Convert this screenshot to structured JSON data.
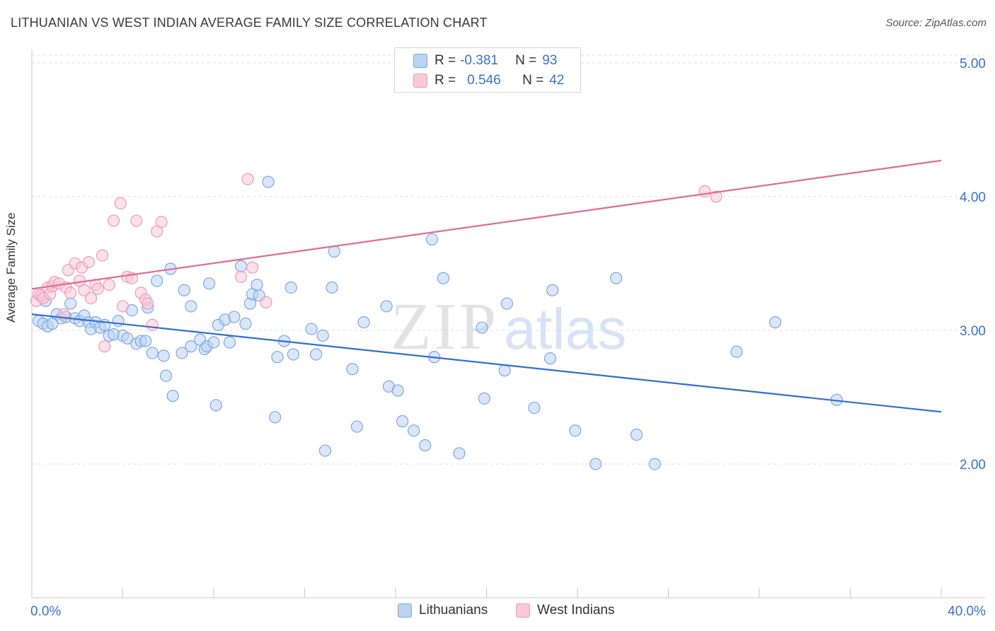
{
  "title": "LITHUANIAN VS WEST INDIAN AVERAGE FAMILY SIZE CORRELATION CHART",
  "source": "Source: ZipAtlas.com",
  "watermark": {
    "zip": "ZIP",
    "atlas": "atlas"
  },
  "legend": {
    "rows": [
      {
        "r_label": "R =",
        "r_value": "-0.381",
        "n_label": "N =",
        "n_value": "93"
      },
      {
        "r_label": "R =",
        "r_value": "0.546",
        "n_label": "N =",
        "n_value": "42"
      }
    ]
  },
  "bottom_legend": {
    "series1": "Lithuanians",
    "series2": "West Indians"
  },
  "colors": {
    "blue_fill": "#bcd3f4",
    "blue_stroke": "#7fa6e0",
    "blue_line": "#2f6fce",
    "pink_fill": "#f8c9d8",
    "pink_stroke": "#ee9ab6",
    "pink_line": "#e06c95",
    "axis_text": "#3a72c8",
    "grid": "#dcdcdc"
  },
  "chart_data": {
    "type": "scatter",
    "title": "LITHUANIAN VS WEST INDIAN AVERAGE FAMILY SIZE CORRELATION CHART",
    "xlabel": "",
    "ylabel": "Average Family Size",
    "xlim": [
      0,
      40
    ],
    "ylim": [
      1.0,
      5.1
    ],
    "x_tick_labels": [
      "0.0%",
      "40.0%"
    ],
    "y_ticks": [
      2.0,
      3.0,
      4.0,
      5.0
    ],
    "y_tick_labels": [
      "2.00",
      "3.00",
      "4.00",
      "5.00"
    ],
    "series": [
      {
        "name": "Lithuanians",
        "r": -0.381,
        "n": 93,
        "trend": {
          "x": [
            0,
            40
          ],
          "y": [
            3.12,
            2.39
          ]
        },
        "points": [
          [
            0.3,
            3.07
          ],
          [
            0.5,
            3.05
          ],
          [
            0.7,
            3.03
          ],
          [
            0.9,
            3.05
          ],
          [
            1.1,
            3.12
          ],
          [
            1.3,
            3.09
          ],
          [
            1.5,
            3.1
          ],
          [
            1.7,
            3.2
          ],
          [
            1.9,
            3.09
          ],
          [
            2.1,
            3.07
          ],
          [
            2.3,
            3.11
          ],
          [
            2.5,
            3.06
          ],
          [
            2.6,
            3.01
          ],
          [
            2.8,
            3.06
          ],
          [
            3.0,
            3.02
          ],
          [
            3.2,
            3.04
          ],
          [
            3.4,
            2.96
          ],
          [
            3.6,
            2.97
          ],
          [
            3.8,
            3.07
          ],
          [
            4.0,
            2.96
          ],
          [
            4.2,
            2.94
          ],
          [
            4.4,
            3.15
          ],
          [
            4.6,
            2.9
          ],
          [
            4.8,
            2.92
          ],
          [
            5.0,
            2.92
          ],
          [
            5.1,
            3.17
          ],
          [
            5.3,
            2.83
          ],
          [
            5.5,
            3.37
          ],
          [
            5.8,
            2.81
          ],
          [
            5.9,
            2.66
          ],
          [
            6.1,
            3.46
          ],
          [
            6.2,
            2.51
          ],
          [
            6.6,
            2.83
          ],
          [
            6.7,
            3.3
          ],
          [
            7.0,
            2.88
          ],
          [
            7.0,
            3.18
          ],
          [
            7.4,
            2.93
          ],
          [
            7.6,
            2.86
          ],
          [
            7.7,
            2.88
          ],
          [
            7.8,
            3.35
          ],
          [
            8.0,
            2.91
          ],
          [
            8.1,
            2.44
          ],
          [
            8.2,
            3.04
          ],
          [
            8.5,
            3.08
          ],
          [
            8.7,
            2.91
          ],
          [
            8.9,
            3.1
          ],
          [
            9.2,
            3.48
          ],
          [
            9.4,
            3.05
          ],
          [
            9.6,
            3.2
          ],
          [
            9.7,
            3.27
          ],
          [
            9.9,
            3.34
          ],
          [
            10.0,
            3.26
          ],
          [
            10.4,
            4.11
          ],
          [
            10.7,
            2.35
          ],
          [
            10.8,
            2.8
          ],
          [
            11.1,
            2.92
          ],
          [
            11.4,
            3.32
          ],
          [
            11.5,
            2.82
          ],
          [
            12.3,
            3.01
          ],
          [
            12.5,
            2.82
          ],
          [
            12.8,
            2.96
          ],
          [
            12.9,
            2.1
          ],
          [
            13.2,
            3.32
          ],
          [
            13.3,
            3.59
          ],
          [
            14.1,
            2.71
          ],
          [
            14.3,
            2.28
          ],
          [
            14.6,
            3.06
          ],
          [
            15.6,
            3.18
          ],
          [
            15.7,
            2.58
          ],
          [
            16.1,
            2.55
          ],
          [
            16.3,
            2.32
          ],
          [
            16.8,
            2.25
          ],
          [
            17.3,
            2.14
          ],
          [
            17.6,
            3.68
          ],
          [
            17.7,
            2.8
          ],
          [
            18.1,
            3.39
          ],
          [
            18.8,
            2.08
          ],
          [
            19.8,
            3.02
          ],
          [
            19.9,
            2.49
          ],
          [
            20.8,
            2.7
          ],
          [
            20.9,
            3.2
          ],
          [
            22.1,
            2.42
          ],
          [
            22.8,
            2.79
          ],
          [
            22.9,
            3.3
          ],
          [
            23.9,
            2.25
          ],
          [
            24.8,
            2.0
          ],
          [
            25.7,
            3.39
          ],
          [
            26.6,
            2.22
          ],
          [
            27.4,
            2.0
          ],
          [
            31.0,
            2.84
          ],
          [
            32.7,
            3.06
          ],
          [
            35.4,
            2.48
          ],
          [
            0.6,
            3.22
          ]
        ]
      },
      {
        "name": "West Indians",
        "r": 0.546,
        "n": 42,
        "trend": {
          "x": [
            0,
            40
          ],
          "y": [
            3.31,
            4.27
          ]
        },
        "points": [
          [
            0.2,
            3.22
          ],
          [
            0.3,
            3.27
          ],
          [
            0.4,
            3.26
          ],
          [
            0.5,
            3.24
          ],
          [
            0.7,
            3.32
          ],
          [
            0.8,
            3.27
          ],
          [
            0.9,
            3.33
          ],
          [
            1.0,
            3.36
          ],
          [
            1.2,
            3.35
          ],
          [
            1.4,
            3.12
          ],
          [
            1.5,
            3.32
          ],
          [
            1.6,
            3.45
          ],
          [
            1.7,
            3.28
          ],
          [
            1.9,
            3.5
          ],
          [
            2.1,
            3.37
          ],
          [
            2.2,
            3.47
          ],
          [
            2.3,
            3.3
          ],
          [
            2.5,
            3.51
          ],
          [
            2.6,
            3.24
          ],
          [
            2.8,
            3.34
          ],
          [
            2.9,
            3.31
          ],
          [
            3.1,
            3.56
          ],
          [
            3.2,
            2.88
          ],
          [
            3.4,
            3.34
          ],
          [
            3.6,
            3.82
          ],
          [
            3.9,
            3.95
          ],
          [
            4.0,
            3.18
          ],
          [
            4.2,
            3.4
          ],
          [
            4.4,
            3.39
          ],
          [
            4.6,
            3.82
          ],
          [
            4.8,
            3.28
          ],
          [
            5.0,
            3.23
          ],
          [
            5.1,
            3.2
          ],
          [
            5.3,
            3.04
          ],
          [
            5.5,
            3.74
          ],
          [
            5.7,
            3.81
          ],
          [
            9.2,
            3.4
          ],
          [
            9.7,
            3.47
          ],
          [
            9.5,
            4.13
          ],
          [
            10.3,
            3.21
          ],
          [
            29.6,
            4.04
          ],
          [
            30.1,
            4.0
          ]
        ]
      }
    ]
  }
}
